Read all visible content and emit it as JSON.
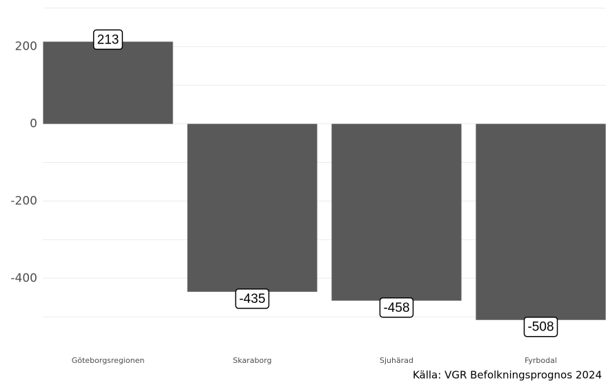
{
  "chart_data": {
    "type": "bar",
    "categories": [
      "Göteborgsregionen",
      "Skaraborg",
      "Sjuhärad",
      "Fyrbodal"
    ],
    "values": [
      213,
      -435,
      -458,
      -508
    ],
    "color": "#595959",
    "ylim": [
      -555,
      321
    ],
    "yticks": [
      -400,
      -200,
      0,
      200
    ],
    "minor_yticks": [
      -500,
      -300,
      -100,
      100,
      300
    ],
    "grid": true,
    "caption": "Källa: VGR Befolkningsprognos 2024"
  }
}
